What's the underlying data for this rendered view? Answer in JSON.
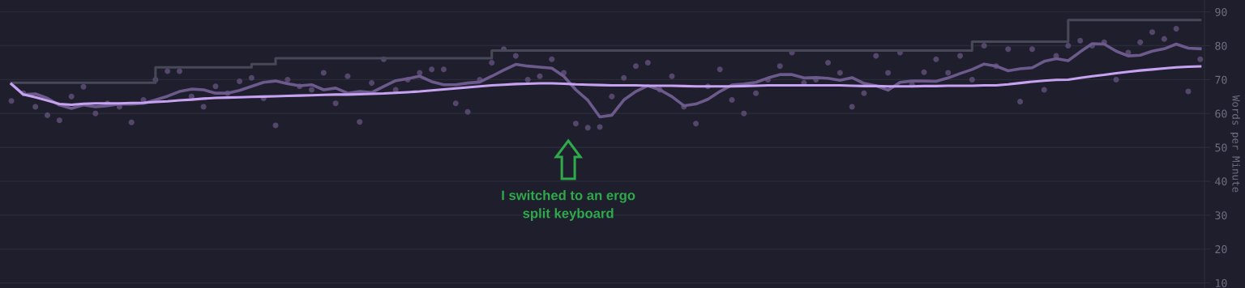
{
  "chart_data": {
    "type": "line",
    "ylabel": "Words per Minute",
    "ylim": [
      8.5,
      93.5
    ],
    "yticks": [
      10,
      20,
      30,
      40,
      50,
      60,
      70,
      80,
      90
    ],
    "tick_labels": "y",
    "grid": "y",
    "legend": false,
    "categories": [
      null,
      null,
      null,
      null,
      null,
      null,
      null,
      null,
      null,
      null,
      null,
      null,
      null,
      null,
      null,
      null,
      null,
      null,
      null,
      null,
      null,
      null,
      null,
      null,
      null,
      null,
      null,
      null,
      null,
      null,
      null,
      null,
      null,
      null,
      null,
      null,
      null,
      null,
      null,
      null,
      null,
      null,
      null,
      null,
      null,
      null,
      null,
      null,
      null,
      null,
      null,
      null,
      null,
      null,
      null,
      null,
      null,
      null,
      null,
      null,
      null,
      null,
      null,
      null,
      null,
      null,
      null,
      null,
      null,
      null,
      null,
      null,
      null,
      null,
      null,
      null,
      null,
      null,
      null,
      null,
      null,
      null,
      null,
      null,
      null,
      null,
      null,
      null,
      null,
      null,
      null,
      null,
      null,
      null,
      null,
      null,
      null,
      null,
      null,
      null
    ],
    "series": [
      {
        "type": "scatter",
        "marker": "circle",
        "color": "#54476b",
        "values": [
          63.7,
          66,
          62,
          59.5,
          58,
          65,
          67.9,
          60,
          63,
          62,
          57.4,
          64,
          70,
          72.5,
          72.5,
          65,
          62,
          68,
          66,
          69.5,
          70.5,
          64.5,
          56.5,
          70,
          68,
          67,
          72,
          63,
          71,
          57.5,
          69,
          76,
          67,
          70,
          72,
          73,
          73,
          63,
          60.5,
          70,
          75,
          79,
          77,
          70,
          71,
          76,
          72,
          57,
          55.8,
          56,
          65,
          70.5,
          74,
          75,
          67,
          71,
          62,
          57,
          68,
          73,
          64,
          60,
          66,
          70,
          74,
          78,
          69,
          70,
          75,
          72,
          62,
          66,
          77,
          72,
          78,
          68.5,
          72.2,
          76,
          72,
          77,
          70,
          80,
          74,
          79,
          63.5,
          79,
          67,
          77,
          80,
          81.5,
          80,
          81,
          70,
          78,
          81,
          84,
          82,
          85,
          66.5,
          76
        ]
      },
      {
        "type": "step",
        "color": "#474858",
        "values": [
          69.1,
          69.1,
          69.1,
          69.1,
          69.1,
          69.1,
          69.1,
          69.1,
          69.1,
          69.1,
          69.1,
          69.1,
          73.6,
          73.6,
          73.6,
          73.6,
          73.6,
          73.6,
          73.6,
          73.6,
          74.6,
          74.6,
          76.3,
          76.3,
          76.3,
          76.3,
          76.3,
          76.3,
          76.3,
          76.3,
          76.3,
          76.3,
          76.3,
          76.3,
          76.3,
          76.3,
          76.3,
          76.3,
          76.3,
          76.3,
          78.6,
          78.6,
          78.6,
          78.6,
          78.6,
          78.6,
          78.6,
          78.6,
          78.6,
          78.6,
          78.6,
          78.6,
          78.6,
          78.6,
          78.6,
          78.6,
          78.6,
          78.6,
          78.6,
          78.6,
          78.6,
          78.6,
          78.6,
          78.6,
          78.6,
          78.6,
          78.6,
          78.6,
          78.6,
          78.6,
          78.6,
          78.6,
          78.6,
          78.6,
          78.6,
          78.6,
          78.6,
          78.6,
          78.6,
          78.6,
          81.2,
          81.2,
          81.2,
          81.2,
          81.2,
          81.2,
          81.2,
          81.2,
          87.6,
          87.6,
          87.6,
          87.6,
          87.6,
          87.6,
          87.6,
          87.6,
          87.6,
          87.6,
          87.6,
          87.6
        ]
      },
      {
        "color": "#6c5a8c",
        "values": [
          68.7,
          65.6,
          65.8,
          64.5,
          62.5,
          61.5,
          62.5,
          62,
          62.3,
          62.8,
          62.8,
          63,
          64,
          65.1,
          66.5,
          67.2,
          67,
          66,
          66,
          66.8,
          68,
          69.2,
          69.6,
          68.8,
          68.2,
          68.5,
          67,
          67.5,
          66,
          66.5,
          66.2,
          68,
          69.7,
          70.3,
          71,
          69.4,
          68.5,
          68.5,
          69,
          69.3,
          71,
          72.8,
          74.5,
          74,
          73.7,
          73.4,
          71,
          67,
          63.9,
          59,
          59.5,
          64,
          66.5,
          68.2,
          67,
          65,
          62.3,
          62.8,
          64.2,
          66.5,
          68.4,
          68.7,
          69.2,
          70.5,
          71.5,
          71.5,
          70.5,
          70.6,
          70.4,
          69.8,
          70.6,
          68.9,
          68.2,
          66.9,
          69.2,
          69.6,
          69.6,
          69.5,
          70.5,
          71.8,
          73,
          74.6,
          74,
          72.6,
          73.2,
          73.5,
          75.4,
          76.2,
          75.6,
          78.2,
          80.6,
          80.5,
          78.4,
          77,
          77.2,
          78.4,
          79.1,
          80.5,
          79.3,
          79.1
        ]
      },
      {
        "color": "#c8a2f2",
        "values": [
          68.7,
          65.6,
          64.8,
          63.8,
          62.8,
          62.6,
          62.9,
          63,
          63,
          63,
          63.1,
          63.2,
          63.4,
          63.6,
          63.9,
          64.1,
          64.4,
          64.6,
          64.7,
          64.8,
          64.9,
          65,
          65.1,
          65.2,
          65.3,
          65.4,
          65.5,
          65.6,
          65.6,
          65.7,
          65.8,
          65.9,
          66.1,
          66.3,
          66.5,
          66.8,
          67.1,
          67.4,
          67.7,
          68,
          68.3,
          68.5,
          68.7,
          68.8,
          68.9,
          68.9,
          68.8,
          68.6,
          68.5,
          68.4,
          68.3,
          68.3,
          68.3,
          68.2,
          68.2,
          68.2,
          68.1,
          68,
          68,
          68,
          68,
          68.1,
          68.2,
          68.3,
          68.3,
          68.3,
          68.3,
          68.3,
          68.3,
          68.3,
          68.2,
          68.1,
          68.1,
          68,
          68,
          68,
          68.1,
          68.1,
          68.2,
          68.2,
          68.2,
          68.3,
          68.3,
          68.6,
          69,
          69.4,
          69.7,
          69.9,
          70,
          70.5,
          71,
          71.4,
          71.9,
          72.3,
          72.7,
          73,
          73.3,
          73.6,
          73.8,
          73.9
        ]
      }
    ],
    "annotations": [
      "I switched to an ergo\nsplit keyboard"
    ]
  }
}
